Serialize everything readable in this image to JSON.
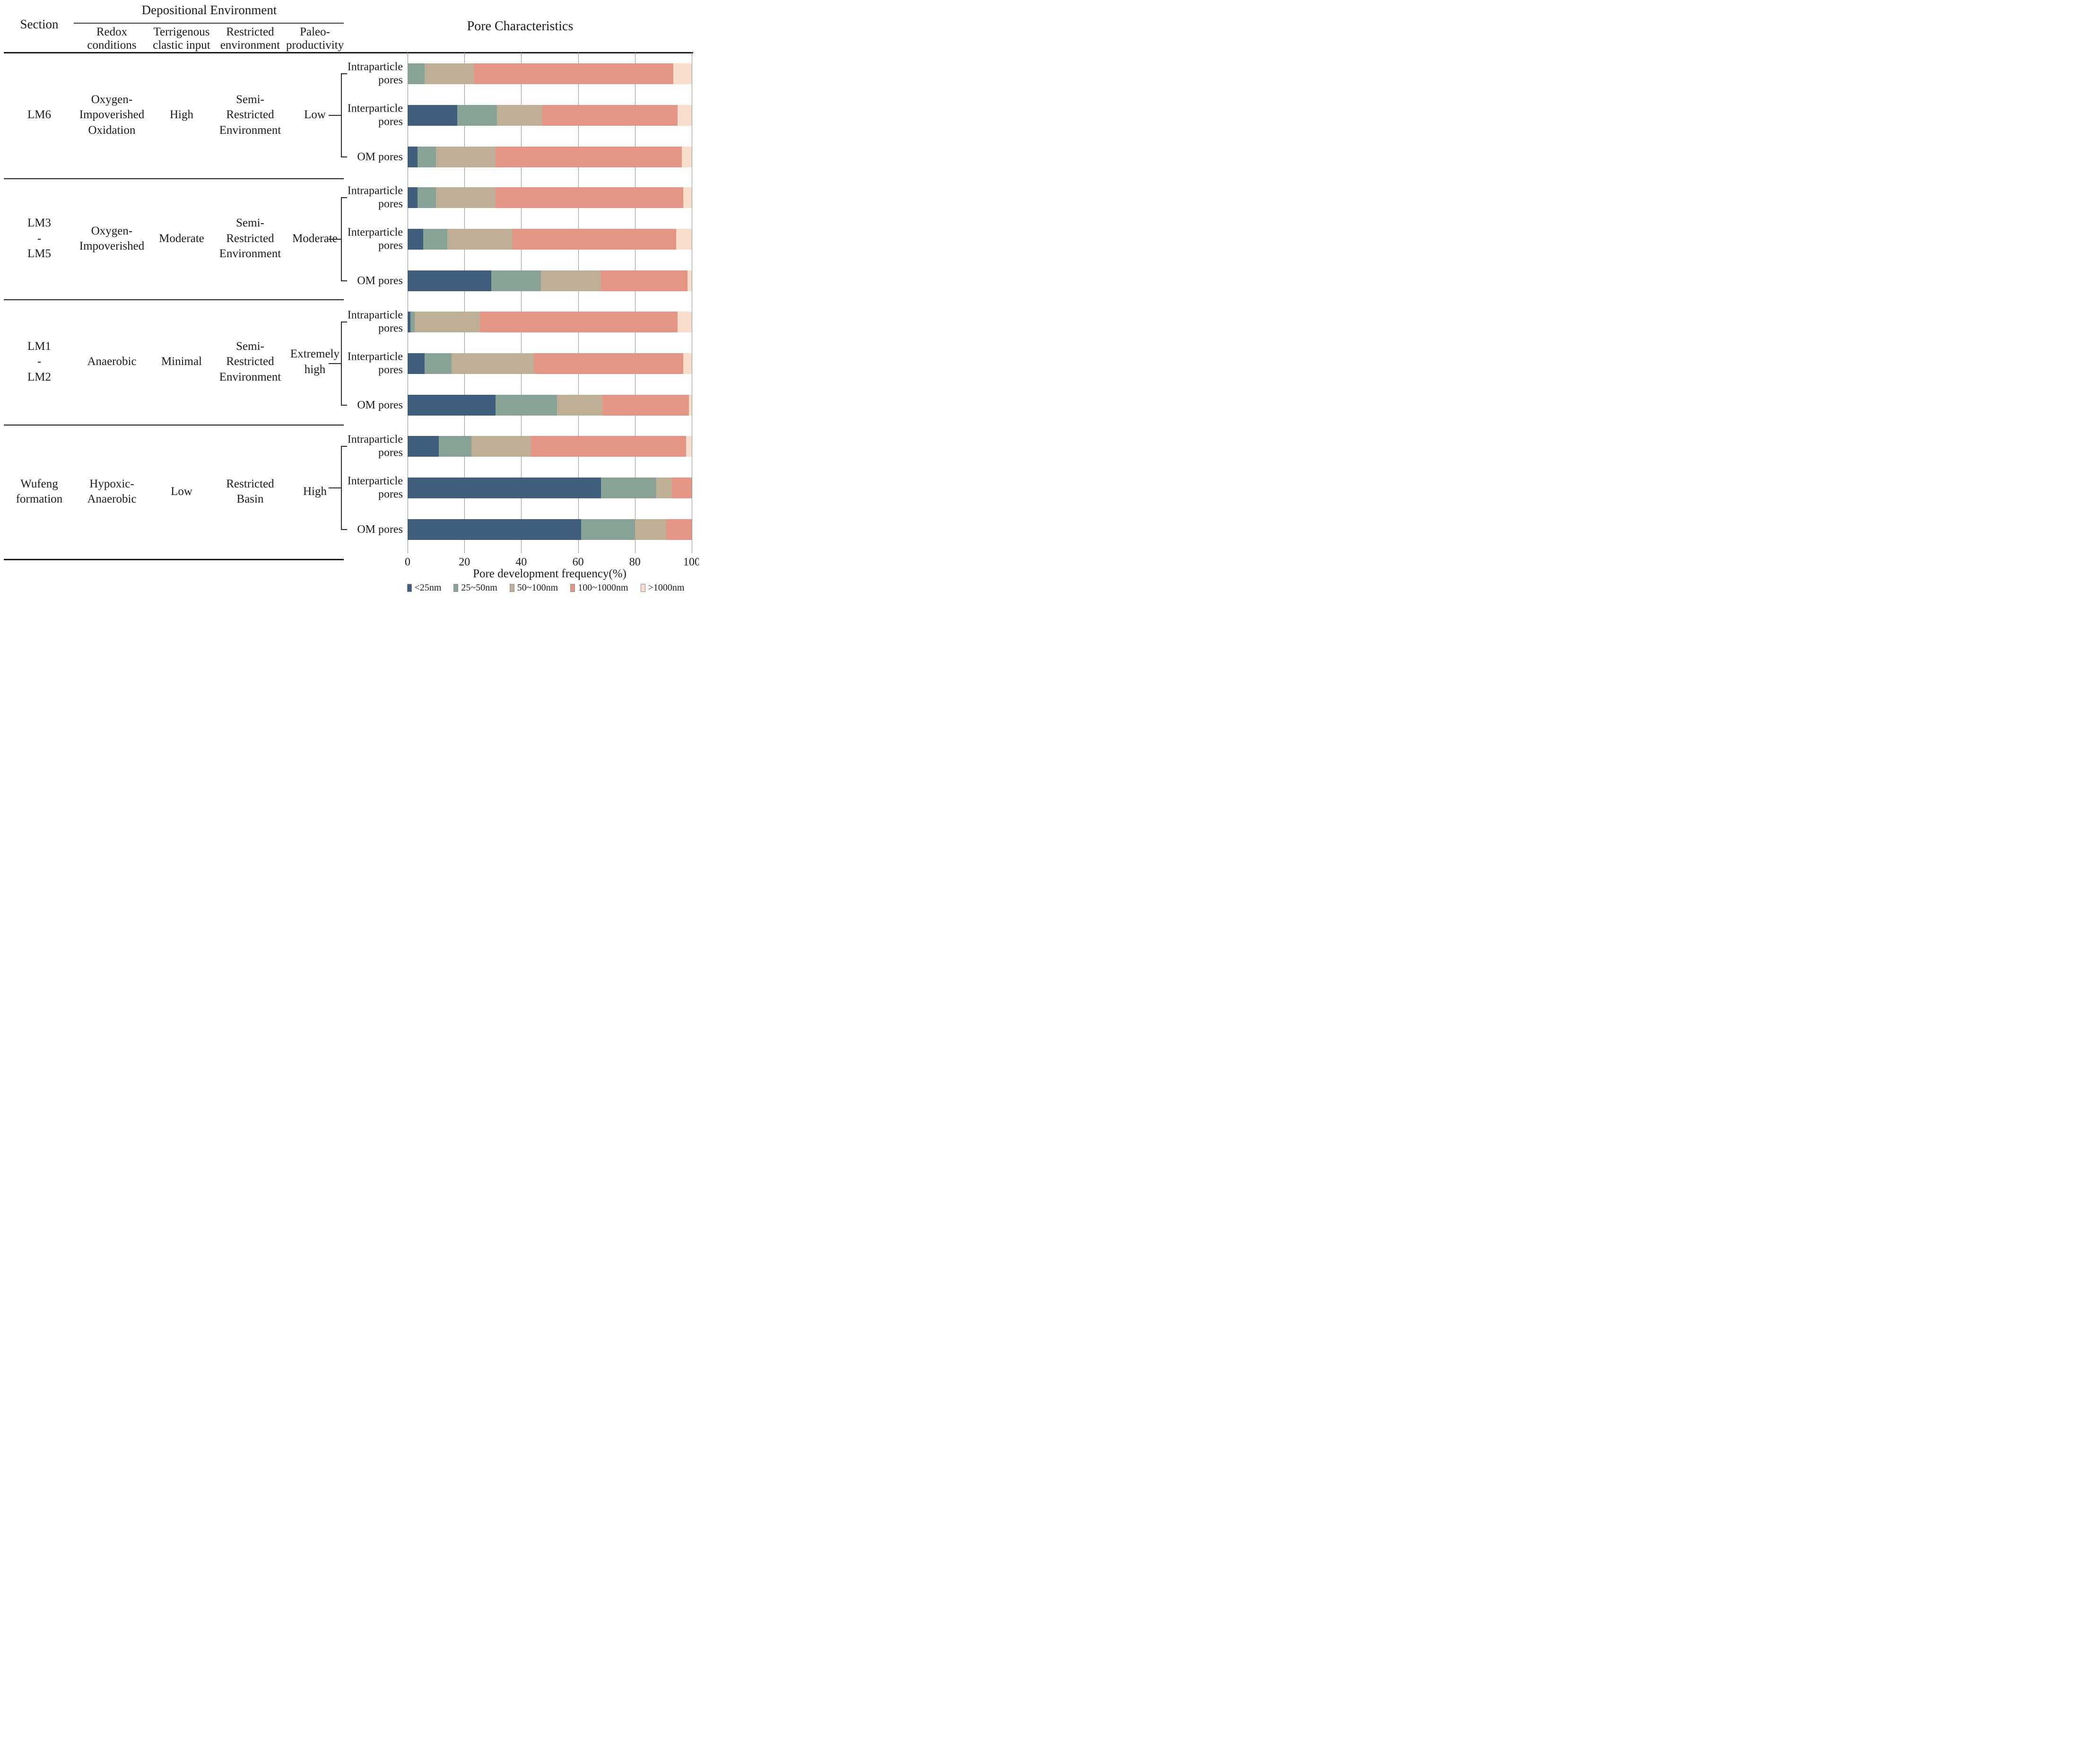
{
  "table": {
    "section_col": "Section",
    "group_header": "Depositional Environment",
    "sub_columns": [
      "Redox\nconditions",
      "Terrigenous\nclastic input",
      "Restricted\nenvironment",
      "Paleo-\nproductivity"
    ],
    "rows": [
      {
        "section": "LM6",
        "redox": "Oxygen-\nImpoverished\nOxidation",
        "terrigenous": "High",
        "restricted": "Semi-\nRestricted\nEnvironment",
        "paleo": "Low"
      },
      {
        "section": "LM3\n-\nLM5",
        "redox": "Oxygen-\nImpoverished",
        "terrigenous": "Moderate",
        "restricted": "Semi-\nRestricted\nEnvironment",
        "paleo": "Moderate"
      },
      {
        "section": "LM1\n-\nLM2",
        "redox": "Anaerobic",
        "terrigenous": "Minimal",
        "restricted": "Semi-\nRestricted\nEnvironment",
        "paleo": "Extremely\nhigh"
      },
      {
        "section": "Wufeng\nformation",
        "redox": "Hypoxic-\nAnaerobic",
        "terrigenous": "Low",
        "restricted": "Restricted\nBasin",
        "paleo": "High"
      }
    ]
  },
  "chart_data": {
    "type": "bar",
    "stacked": true,
    "orientation": "horizontal",
    "title": "Pore Characteristics",
    "xlabel": "Pore development frequency(%)",
    "xlim": [
      0,
      100
    ],
    "xticks": [
      0,
      20,
      40,
      60,
      80,
      100
    ],
    "grid": true,
    "legend_position": "bottom",
    "series": [
      "<25nm",
      "25~50nm",
      "50~100nm",
      "100~1000nm",
      ">1000nm"
    ],
    "colors": [
      "#3f5e7e",
      "#88a295",
      "#c0af97",
      "#e59583",
      "#f9decb"
    ],
    "groups": [
      {
        "section": "LM6",
        "bars": [
          {
            "label": "Intraparticle\npores",
            "values": [
              0,
              6,
              17.5,
              70,
              6.5
            ]
          },
          {
            "label": "Interparticle\npores",
            "values": [
              17.5,
              14,
              16,
              47.5,
              5
            ]
          },
          {
            "label": "OM pores",
            "values": [
              3.5,
              6.5,
              21,
              65.5,
              3.5
            ]
          }
        ]
      },
      {
        "section": "LM3-LM5",
        "bars": [
          {
            "label": "Intraparticle\npores",
            "values": [
              3.5,
              6.5,
              21,
              66,
              3
            ]
          },
          {
            "label": "Interparticle\npores",
            "values": [
              5.5,
              8.5,
              23,
              57.5,
              5.5
            ]
          },
          {
            "label": "OM pores",
            "values": [
              29.5,
              17.5,
              21,
              30.5,
              1.5
            ]
          }
        ]
      },
      {
        "section": "LM1-LM2",
        "bars": [
          {
            "label": "Intraparticle\npores",
            "values": [
              1,
              1.5,
              23,
              69.5,
              5
            ]
          },
          {
            "label": "Interparticle\npores",
            "values": [
              6,
              9.5,
              29,
              52.5,
              3
            ]
          },
          {
            "label": "OM pores",
            "values": [
              31,
              21.5,
              16,
              30.5,
              1
            ]
          }
        ]
      },
      {
        "section": "Wufeng formation",
        "bars": [
          {
            "label": "Intraparticle\npores",
            "values": [
              11,
              11.5,
              21,
              54.5,
              2
            ]
          },
          {
            "label": "Interparticle\npores",
            "values": [
              68,
              19.5,
              5.5,
              7,
              0
            ]
          },
          {
            "label": "OM pores",
            "values": [
              61,
              19,
              11,
              9,
              0
            ]
          }
        ]
      }
    ]
  }
}
